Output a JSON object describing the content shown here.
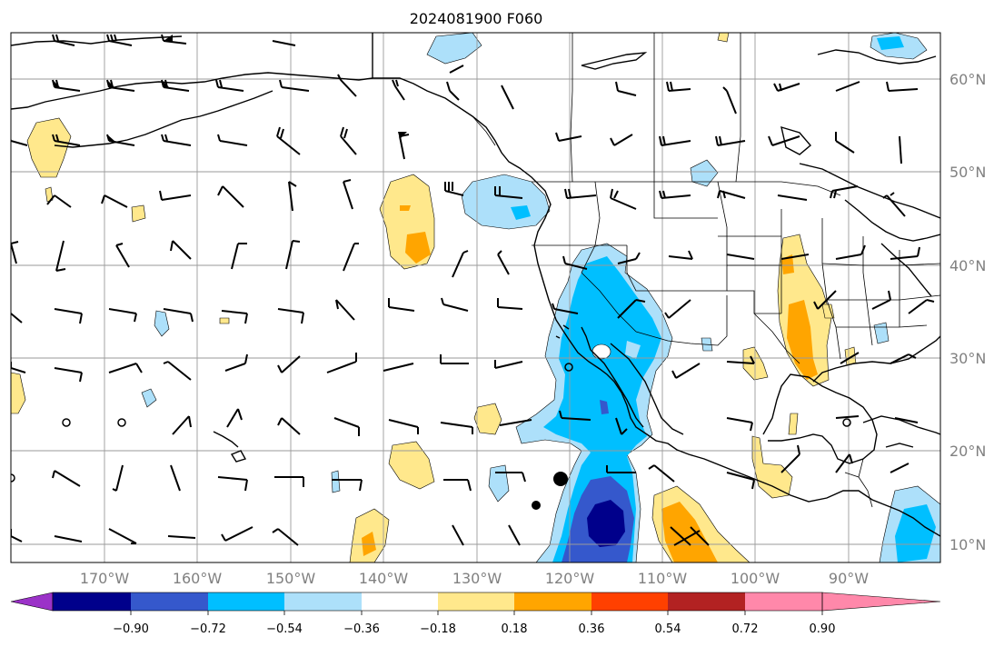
{
  "title": "2024081900 F060",
  "lon_labels": [
    "170°W",
    "160°W",
    "150°W",
    "140°W",
    "130°W",
    "120°W",
    "110°W",
    "100°W",
    "90°W"
  ],
  "lat_labels": [
    "60°N",
    "50°N",
    "40°N",
    "30°N",
    "20°N",
    "10°N"
  ],
  "colorbar": {
    "levels": [
      "−0.90",
      "−0.72",
      "−0.54",
      "−0.36",
      "−0.18",
      "0.18",
      "0.36",
      "0.54",
      "0.72",
      "0.90"
    ],
    "colors": [
      "#9b32c8",
      "#00008b",
      "#3558cc",
      "#00bfff",
      "#ade0fa",
      "#ffffff",
      "#ffe88c",
      "#ffa500",
      "#ff4000",
      "#b22222",
      "#ff88aa"
    ]
  },
  "colors": {
    "weak_pos": "#ffe88c",
    "mod_pos": "#ffa500",
    "weak_neg": "#ade0fa",
    "mod_neg": "#00bfff",
    "strong_neg": "#3558cc",
    "very_strong_neg": "#00008b"
  }
}
